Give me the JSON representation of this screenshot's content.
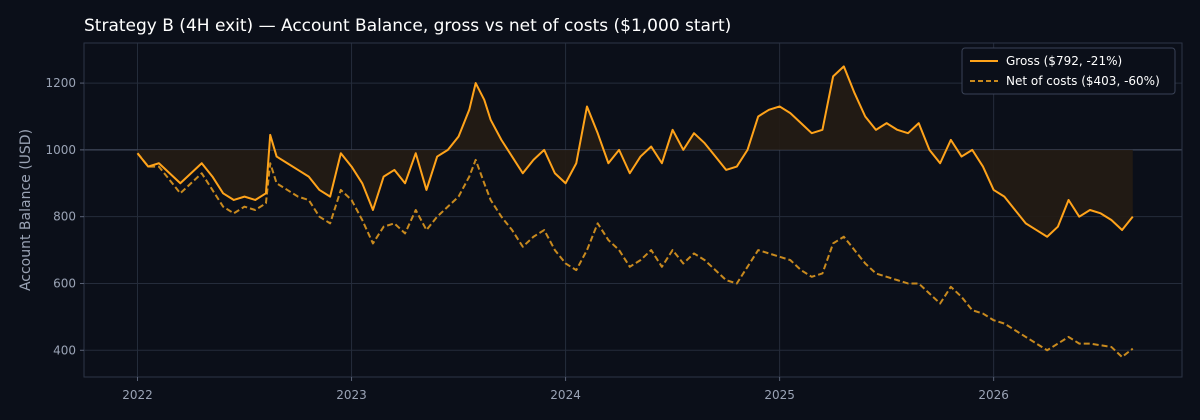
{
  "chart_data": {
    "type": "line",
    "title": "Strategy B (4H exit) — Account Balance, gross vs net of costs ($1,000 start)",
    "xlabel": "",
    "ylabel": "Account Balance (USD)",
    "xlim": [
      2021.75,
      2026.88
    ],
    "ylim": [
      320,
      1320
    ],
    "x_ticks": [
      2022,
      2023,
      2024,
      2025,
      2026
    ],
    "y_ticks": [
      400,
      600,
      800,
      1000,
      1200
    ],
    "baseline": 1000,
    "grid": true,
    "legend": "top-right",
    "colors": {
      "gross": "#ffa31a",
      "net": "#c98a1e",
      "background": "#0b0f19",
      "fill": "#241c14"
    },
    "series": [
      {
        "name": "Gross ($792, -21%)",
        "style": "solid",
        "x": [
          2022.0,
          2022.05,
          2022.1,
          2022.15,
          2022.2,
          2022.25,
          2022.3,
          2022.35,
          2022.4,
          2022.45,
          2022.5,
          2022.55,
          2022.6,
          2022.62,
          2022.65,
          2022.7,
          2022.75,
          2022.8,
          2022.85,
          2022.9,
          2022.95,
          2023.0,
          2023.05,
          2023.1,
          2023.15,
          2023.2,
          2023.25,
          2023.3,
          2023.35,
          2023.4,
          2023.45,
          2023.5,
          2023.55,
          2023.58,
          2023.62,
          2023.65,
          2023.7,
          2023.75,
          2023.8,
          2023.85,
          2023.9,
          2023.95,
          2024.0,
          2024.05,
          2024.1,
          2024.15,
          2024.2,
          2024.25,
          2024.3,
          2024.35,
          2024.4,
          2024.45,
          2024.5,
          2024.55,
          2024.6,
          2024.65,
          2024.7,
          2024.75,
          2024.8,
          2024.85,
          2024.9,
          2024.95,
          2025.0,
          2025.05,
          2025.1,
          2025.15,
          2025.2,
          2025.25,
          2025.3,
          2025.35,
          2025.4,
          2025.45,
          2025.5,
          2025.55,
          2025.6,
          2025.65,
          2025.7,
          2025.75,
          2025.8,
          2025.85,
          2025.9,
          2025.95,
          2026.0,
          2026.05,
          2026.1,
          2026.15,
          2026.2,
          2026.25,
          2026.3,
          2026.35,
          2026.4,
          2026.45,
          2026.5,
          2026.55,
          2026.6,
          2026.65
        ],
        "y": [
          990,
          950,
          960,
          930,
          900,
          930,
          960,
          920,
          870,
          850,
          860,
          850,
          870,
          1045,
          980,
          960,
          940,
          920,
          880,
          860,
          990,
          950,
          900,
          820,
          920,
          940,
          900,
          990,
          880,
          980,
          1000,
          1040,
          1120,
          1200,
          1150,
          1090,
          1030,
          980,
          930,
          970,
          1000,
          930,
          900,
          960,
          1130,
          1050,
          960,
          1000,
          930,
          980,
          1010,
          960,
          1060,
          1000,
          1050,
          1020,
          980,
          940,
          950,
          1000,
          1100,
          1120,
          1130,
          1110,
          1080,
          1050,
          1060,
          1220,
          1250,
          1170,
          1100,
          1060,
          1080,
          1060,
          1050,
          1080,
          1000,
          960,
          1030,
          980,
          1000,
          950,
          880,
          860,
          820,
          780,
          760,
          740,
          770,
          850,
          800,
          820,
          810,
          790,
          760,
          800
        ]
      },
      {
        "name": "Net of costs ($403, -60%)",
        "style": "dashed",
        "x": [
          2022.0,
          2022.05,
          2022.1,
          2022.15,
          2022.2,
          2022.25,
          2022.3,
          2022.35,
          2022.4,
          2022.45,
          2022.5,
          2022.55,
          2022.6,
          2022.62,
          2022.65,
          2022.7,
          2022.75,
          2022.8,
          2022.85,
          2022.9,
          2022.95,
          2023.0,
          2023.05,
          2023.1,
          2023.15,
          2023.2,
          2023.25,
          2023.3,
          2023.35,
          2023.4,
          2023.45,
          2023.5,
          2023.55,
          2023.58,
          2023.62,
          2023.65,
          2023.7,
          2023.75,
          2023.8,
          2023.85,
          2023.9,
          2023.95,
          2024.0,
          2024.05,
          2024.1,
          2024.15,
          2024.2,
          2024.25,
          2024.3,
          2024.35,
          2024.4,
          2024.45,
          2024.5,
          2024.55,
          2024.6,
          2024.65,
          2024.7,
          2024.75,
          2024.8,
          2024.85,
          2024.9,
          2024.95,
          2025.0,
          2025.05,
          2025.1,
          2025.15,
          2025.2,
          2025.25,
          2025.3,
          2025.35,
          2025.4,
          2025.45,
          2025.5,
          2025.55,
          2025.6,
          2025.65,
          2025.7,
          2025.75,
          2025.8,
          2025.85,
          2025.9,
          2025.95,
          2026.0,
          2026.05,
          2026.1,
          2026.15,
          2026.2,
          2026.25,
          2026.3,
          2026.35,
          2026.4,
          2026.45,
          2026.5,
          2026.55,
          2026.6,
          2026.65
        ],
        "y": [
          990,
          950,
          950,
          910,
          870,
          900,
          930,
          880,
          830,
          810,
          830,
          820,
          840,
          960,
          900,
          880,
          860,
          850,
          800,
          780,
          880,
          850,
          790,
          720,
          770,
          780,
          750,
          820,
          760,
          800,
          830,
          860,
          920,
          970,
          900,
          850,
          800,
          760,
          710,
          740,
          760,
          700,
          660,
          640,
          700,
          780,
          730,
          700,
          650,
          670,
          700,
          650,
          700,
          660,
          690,
          670,
          640,
          610,
          600,
          650,
          700,
          690,
          680,
          670,
          640,
          620,
          630,
          720,
          740,
          700,
          660,
          630,
          620,
          610,
          600,
          600,
          570,
          540,
          590,
          560,
          520,
          510,
          490,
          480,
          460,
          440,
          420,
          400,
          420,
          440,
          420,
          420,
          415,
          410,
          380,
          405
        ]
      }
    ]
  }
}
